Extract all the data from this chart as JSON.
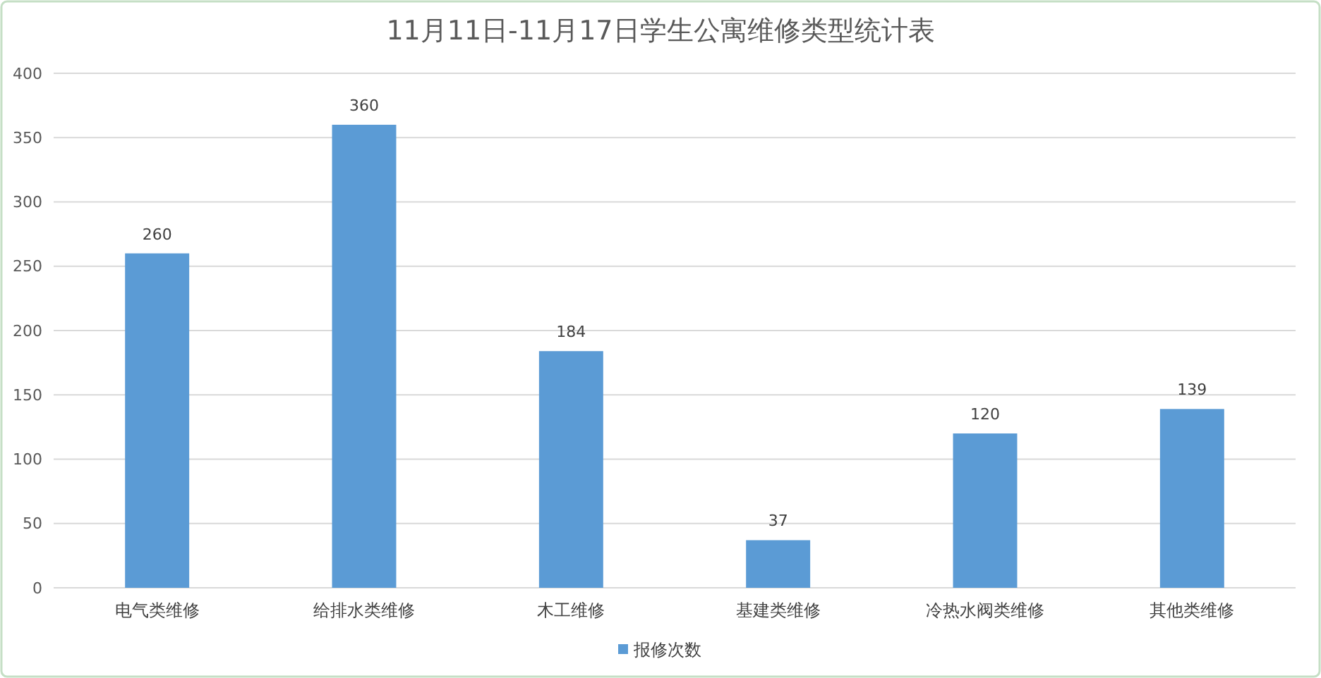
{
  "chart_data": {
    "type": "bar",
    "title": "11月11日-11月17日学生公寓维修类型统计表",
    "categories": [
      "电气类维修",
      "给排水类维修",
      "木工维修",
      "基建类维修",
      "冷热水阀类维修",
      "其他类维修"
    ],
    "series": [
      {
        "name": "报修次数",
        "color": "#5b9bd5",
        "values": [
          260,
          360,
          184,
          37,
          120,
          139
        ]
      }
    ],
    "ylim": [
      0,
      400
    ],
    "yticks": [
      0,
      50,
      100,
      150,
      200,
      250,
      300,
      350,
      400
    ],
    "grid": "y",
    "legend": "bottom",
    "data_labels": true
  }
}
